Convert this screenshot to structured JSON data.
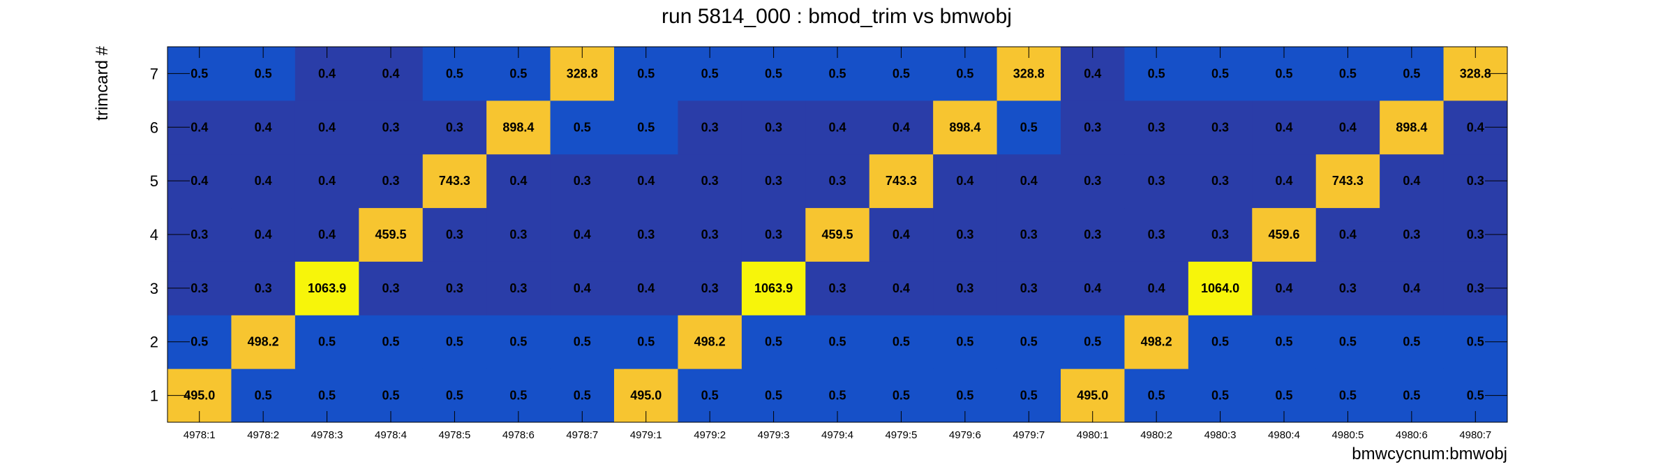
{
  "chart_data": {
    "type": "heatmap",
    "title": "run 5814_000 : bmod_trim vs bmwobj",
    "xlabel": "bmwcycnum:bmwobj",
    "ylabel": "trimcard #",
    "x_categories": [
      "4978:1",
      "4978:2",
      "4978:3",
      "4978:4",
      "4978:5",
      "4978:6",
      "4978:7",
      "4979:1",
      "4979:2",
      "4979:3",
      "4979:4",
      "4979:5",
      "4979:6",
      "4979:7",
      "4980:1",
      "4980:2",
      "4980:3",
      "4980:4",
      "4980:5",
      "4980:6",
      "4980:7"
    ],
    "y_categories": [
      "1",
      "2",
      "3",
      "4",
      "5",
      "6",
      "7"
    ],
    "values": [
      [
        "495.0",
        "0.5",
        "0.5",
        "0.5",
        "0.5",
        "0.5",
        "0.5",
        "495.0",
        "0.5",
        "0.5",
        "0.5",
        "0.5",
        "0.5",
        "0.5",
        "495.0",
        "0.5",
        "0.5",
        "0.5",
        "0.5",
        "0.5",
        "0.5"
      ],
      [
        "0.5",
        "498.2",
        "0.5",
        "0.5",
        "0.5",
        "0.5",
        "0.5",
        "0.5",
        "498.2",
        "0.5",
        "0.5",
        "0.5",
        "0.5",
        "0.5",
        "0.5",
        "498.2",
        "0.5",
        "0.5",
        "0.5",
        "0.5",
        "0.5"
      ],
      [
        "0.3",
        "0.3",
        "1063.9",
        "0.3",
        "0.3",
        "0.3",
        "0.4",
        "0.4",
        "0.3",
        "1063.9",
        "0.3",
        "0.4",
        "0.3",
        "0.3",
        "0.4",
        "0.4",
        "1064.0",
        "0.4",
        "0.3",
        "0.4",
        "0.3"
      ],
      [
        "0.3",
        "0.4",
        "0.4",
        "459.5",
        "0.3",
        "0.3",
        "0.4",
        "0.3",
        "0.3",
        "0.3",
        "459.5",
        "0.4",
        "0.3",
        "0.3",
        "0.3",
        "0.3",
        "0.3",
        "459.6",
        "0.4",
        "0.3",
        "0.3"
      ],
      [
        "0.4",
        "0.4",
        "0.4",
        "0.3",
        "743.3",
        "0.4",
        "0.3",
        "0.4",
        "0.3",
        "0.3",
        "0.3",
        "743.3",
        "0.4",
        "0.4",
        "0.3",
        "0.3",
        "0.3",
        "0.4",
        "743.3",
        "0.4",
        "0.3"
      ],
      [
        "0.4",
        "0.4",
        "0.4",
        "0.3",
        "0.3",
        "898.4",
        "0.5",
        "0.5",
        "0.3",
        "0.3",
        "0.4",
        "0.4",
        "898.4",
        "0.5",
        "0.3",
        "0.3",
        "0.3",
        "0.4",
        "0.4",
        "898.4",
        "0.4"
      ],
      [
        "0.5",
        "0.5",
        "0.4",
        "0.4",
        "0.5",
        "0.5",
        "328.8",
        "0.5",
        "0.5",
        "0.5",
        "0.5",
        "0.5",
        "0.5",
        "328.8",
        "0.4",
        "0.5",
        "0.5",
        "0.5",
        "0.5",
        "0.5",
        "328.8"
      ]
    ],
    "colors": {
      "low": "#2a3da8",
      "mid_low": "#1650c8",
      "mid": "#f7c530",
      "high": "#f7f50a",
      "frame": "#000000",
      "tick": "#000000"
    }
  }
}
